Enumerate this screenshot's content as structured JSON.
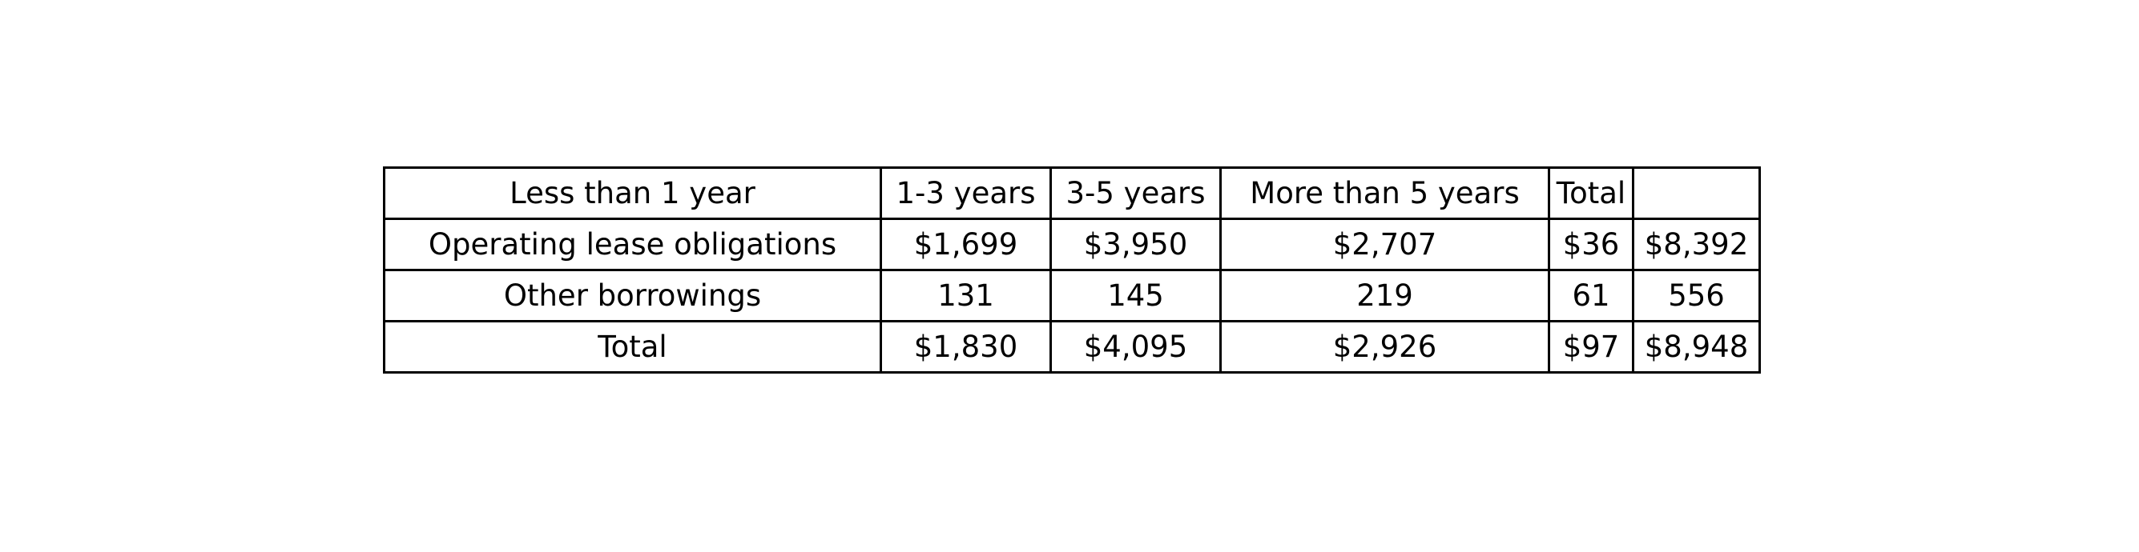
{
  "chart_data": {
    "type": "table",
    "rows": [
      [
        "Less than 1 year",
        "1-3 years",
        "3-5 years",
        "More than 5 years",
        "Total",
        ""
      ],
      [
        "Operating lease obligations",
        "$1,699",
        "$3,950",
        "$2,707",
        "$36",
        "$8,392"
      ],
      [
        "Other borrowings",
        "131",
        "145",
        "219",
        "61",
        "556"
      ],
      [
        "Total",
        "$1,830",
        "$4,095",
        "$2,926",
        "$97",
        "$8,948"
      ]
    ]
  }
}
